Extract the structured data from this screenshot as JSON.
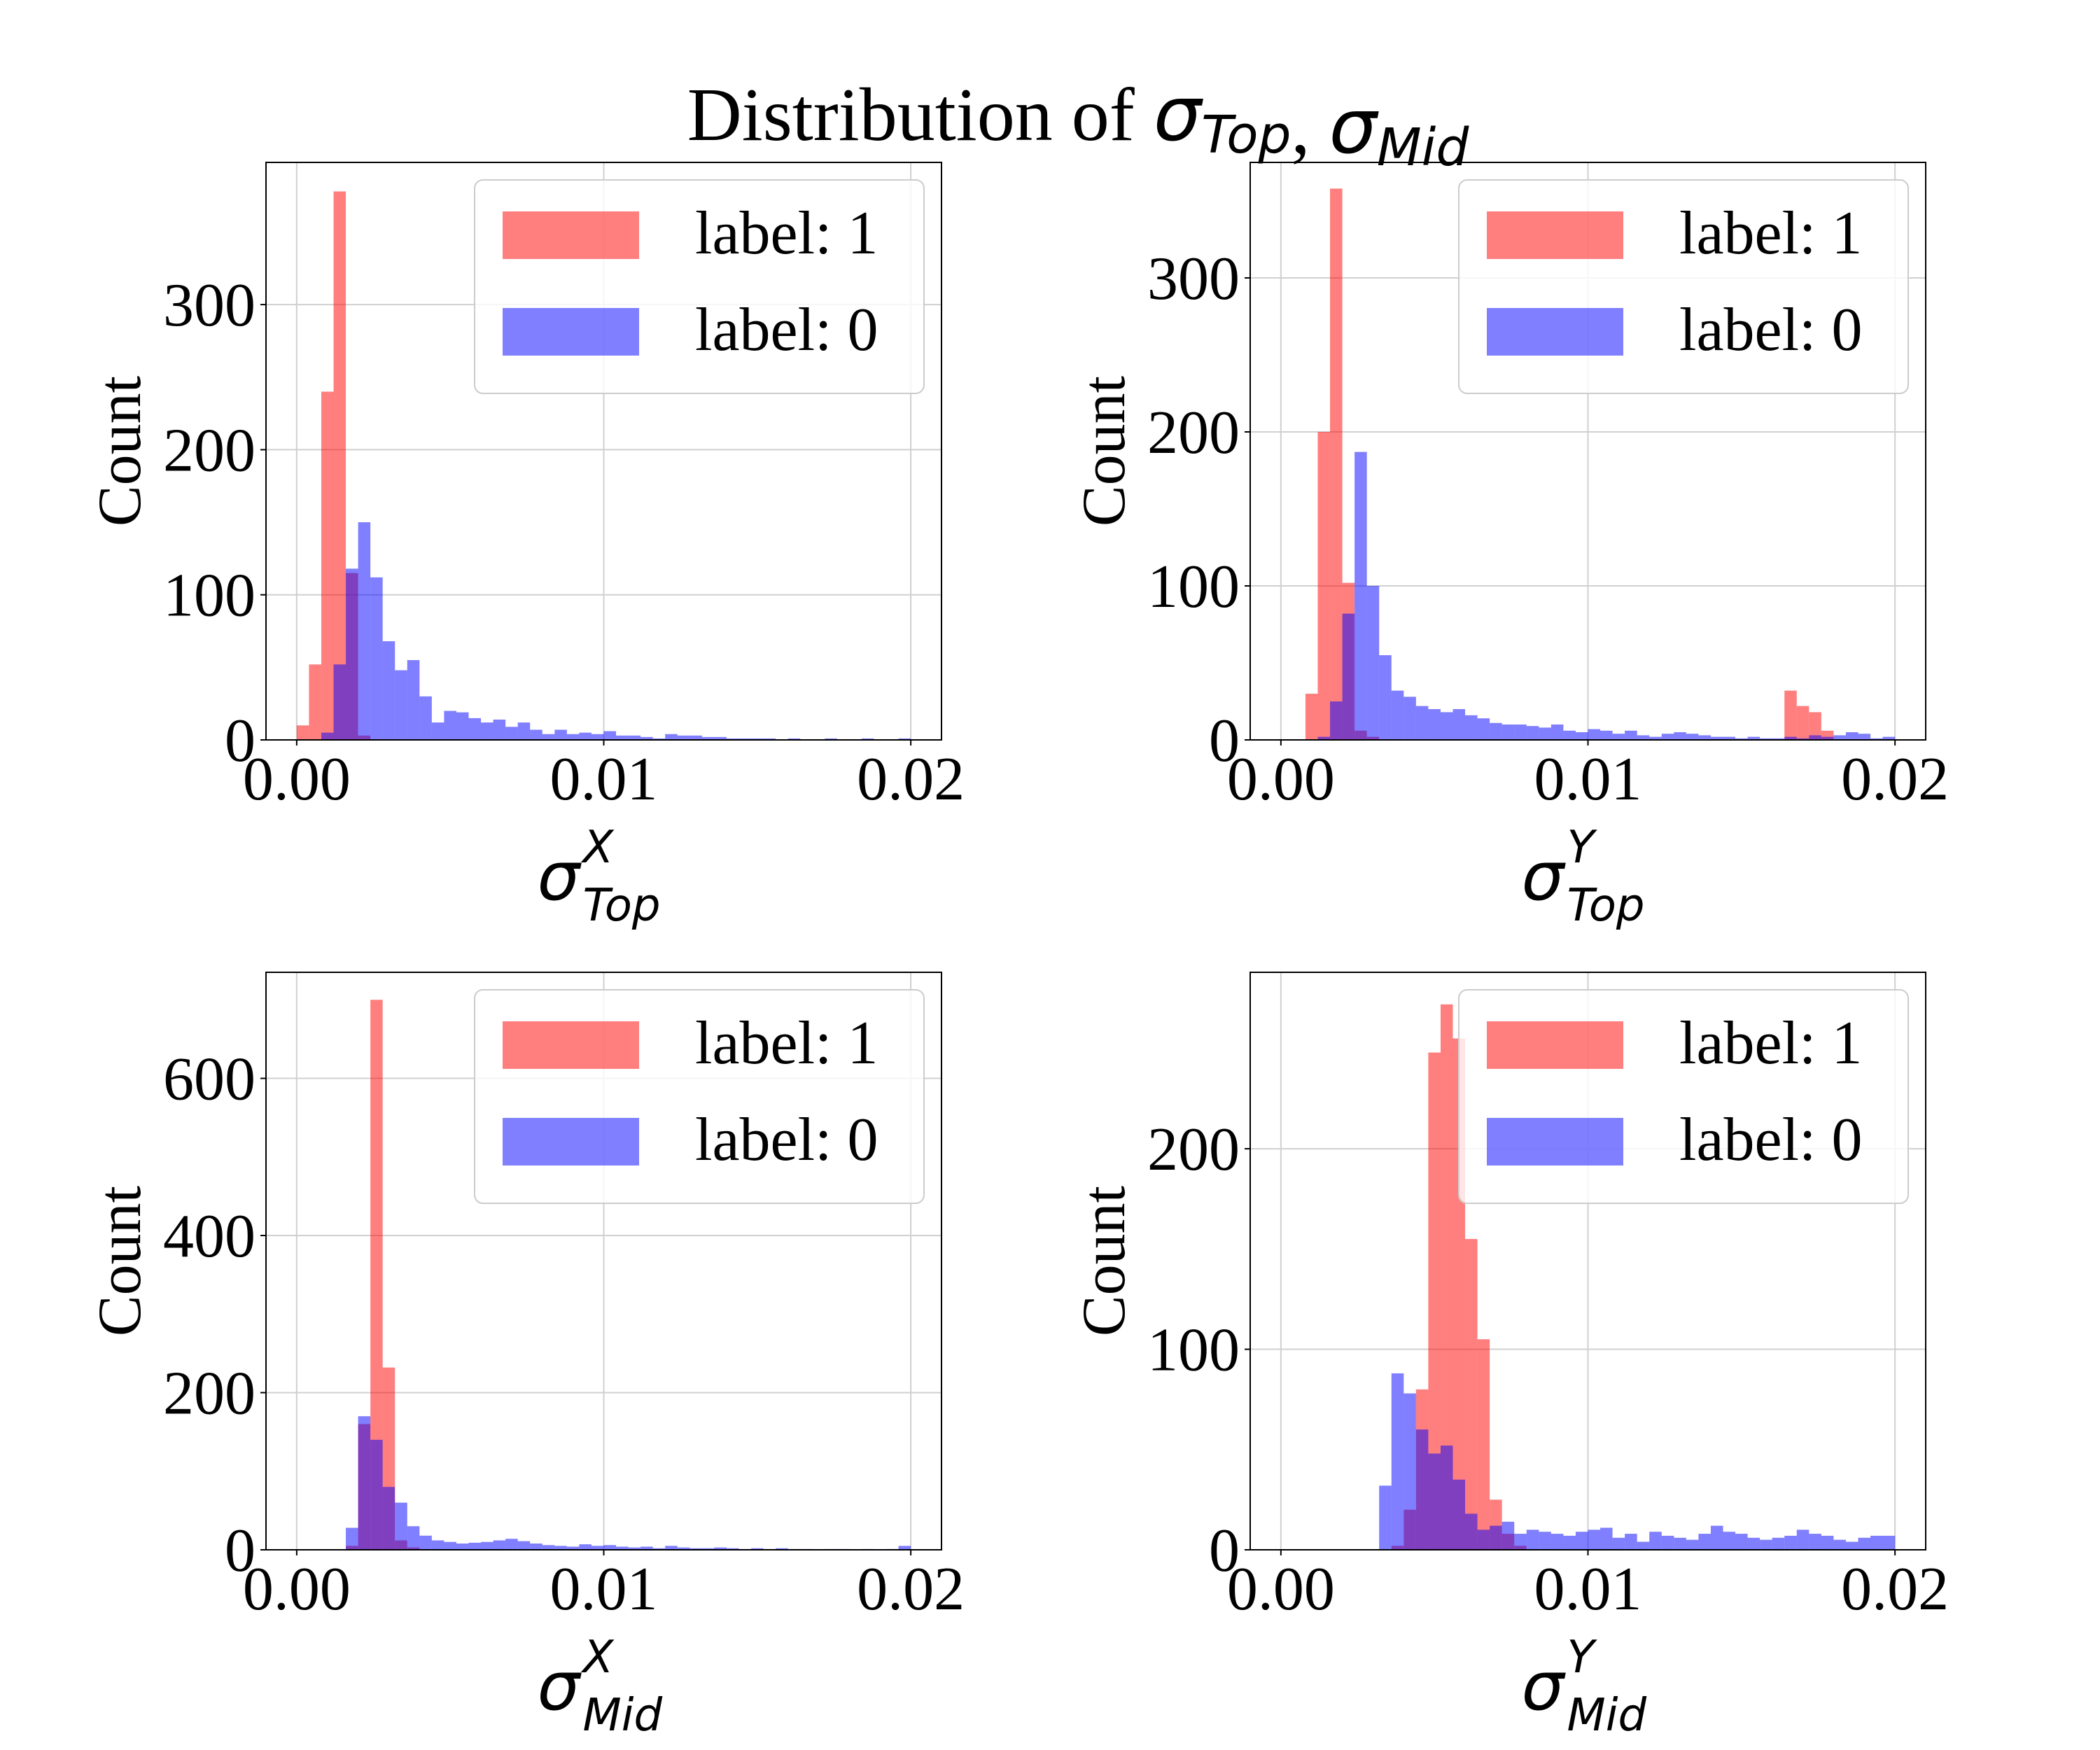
{
  "figure": {
    "title": "Distribution of ",
    "title_symbols": [
      {
        "base": "σ",
        "sub": "Top"
      },
      {
        "base": "σ",
        "sub": "Mid"
      }
    ],
    "title_separator": ", "
  },
  "colors": {
    "label_1": "#ff0000",
    "label_0": "#0000ff",
    "bar_opacity": 0.5,
    "grid": "#d0d0d0",
    "axes": "#000000"
  },
  "chart_data": [
    {
      "type": "bar",
      "title": "",
      "xlabel": {
        "base": "σ",
        "sup": "X",
        "sub": "Top"
      },
      "ylabel": "Count",
      "xlim": [
        -0.001,
        0.021
      ],
      "ylim": [
        0,
        398
      ],
      "xticks": [
        0.0,
        0.01,
        0.02
      ],
      "xtick_labels": [
        "0.00",
        "0.01",
        "0.02"
      ],
      "yticks": [
        0,
        100,
        200,
        300
      ],
      "ytick_labels": [
        "0",
        "100",
        "200",
        "300"
      ],
      "grid": true,
      "legend_position": "top-right",
      "bin_width": 0.0004,
      "series": [
        {
          "name": "label: 1",
          "color": "red",
          "x": [
            0.0,
            0.0004,
            0.0008,
            0.0012,
            0.0016,
            0.002
          ],
          "values": [
            10,
            52,
            240,
            378,
            115,
            3
          ]
        },
        {
          "name": "label: 0",
          "color": "blue",
          "x": [
            0.0008,
            0.0012,
            0.0016,
            0.002,
            0.0024,
            0.0028,
            0.0032,
            0.0036,
            0.004,
            0.0044,
            0.0048,
            0.0052,
            0.0056,
            0.006,
            0.0064,
            0.0068,
            0.0072,
            0.0076,
            0.008,
            0.0084,
            0.0088,
            0.0092,
            0.0096,
            0.01,
            0.0104,
            0.0108,
            0.0112,
            0.0116,
            0.012,
            0.0124,
            0.0128,
            0.0132,
            0.0136,
            0.014,
            0.0144,
            0.0148,
            0.0152,
            0.0156,
            0.016,
            0.0164,
            0.0168,
            0.0172,
            0.0176,
            0.018,
            0.0184,
            0.0188,
            0.0192,
            0.0196
          ],
          "values": [
            5,
            52,
            118,
            150,
            112,
            68,
            48,
            55,
            30,
            12,
            20,
            19,
            15,
            12,
            14,
            9,
            12,
            7,
            4,
            7,
            4,
            5,
            4,
            6,
            3,
            3,
            2,
            1,
            4,
            3,
            3,
            2,
            2,
            1,
            1,
            1,
            1,
            0,
            1,
            0,
            0,
            1,
            0,
            0,
            1,
            0,
            0,
            1
          ]
        }
      ]
    },
    {
      "type": "bar",
      "title": "",
      "xlabel": {
        "base": "σ",
        "sup": "Y",
        "sub": "Top"
      },
      "ylabel": "Count",
      "xlim": [
        -0.001,
        0.021
      ],
      "ylim": [
        0,
        375
      ],
      "xticks": [
        0.0,
        0.01,
        0.02
      ],
      "xtick_labels": [
        "0.00",
        "0.01",
        "0.02"
      ],
      "yticks": [
        0,
        100,
        200,
        300
      ],
      "ytick_labels": [
        "0",
        "100",
        "200",
        "300"
      ],
      "grid": true,
      "legend_position": "top-right",
      "bin_width": 0.0004,
      "series": [
        {
          "name": "label: 1",
          "color": "red",
          "x": [
            0.0008,
            0.0012,
            0.0016,
            0.002,
            0.0024,
            0.0028,
            0.0164,
            0.0168,
            0.0172,
            0.0176
          ],
          "values": [
            30,
            200,
            358,
            102,
            6,
            2,
            32,
            22,
            18,
            6
          ]
        },
        {
          "name": "label: 0",
          "color": "blue",
          "x": [
            0.0012,
            0.0016,
            0.002,
            0.0024,
            0.0028,
            0.0032,
            0.0036,
            0.004,
            0.0044,
            0.0048,
            0.0052,
            0.0056,
            0.006,
            0.0064,
            0.0068,
            0.0072,
            0.0076,
            0.008,
            0.0084,
            0.0088,
            0.0092,
            0.0096,
            0.01,
            0.0104,
            0.0108,
            0.0112,
            0.0116,
            0.012,
            0.0124,
            0.0128,
            0.0132,
            0.0136,
            0.014,
            0.0144,
            0.0148,
            0.0152,
            0.0156,
            0.016,
            0.0164,
            0.0168,
            0.0172,
            0.0176,
            0.018,
            0.0184,
            0.0188,
            0.0192,
            0.0196
          ],
          "values": [
            2,
            25,
            82,
            187,
            100,
            55,
            32,
            28,
            22,
            20,
            18,
            20,
            16,
            14,
            11,
            10,
            10,
            9,
            8,
            10,
            6,
            5,
            7,
            6,
            4,
            6,
            3,
            2,
            4,
            5,
            4,
            3,
            2,
            2,
            1,
            2,
            1,
            1,
            2,
            1,
            3,
            2,
            3,
            5,
            4,
            1,
            2
          ]
        }
      ]
    },
    {
      "type": "bar",
      "title": "",
      "xlabel": {
        "base": "σ",
        "sup": "X",
        "sub": "Mid"
      },
      "ylabel": "Count",
      "xlim": [
        -0.001,
        0.021
      ],
      "ylim": [
        0,
        735
      ],
      "xticks": [
        0.0,
        0.01,
        0.02
      ],
      "xtick_labels": [
        "0.00",
        "0.01",
        "0.02"
      ],
      "yticks": [
        0,
        200,
        400,
        600
      ],
      "ytick_labels": [
        "0",
        "200",
        "400",
        "600"
      ],
      "grid": true,
      "legend_position": "top-right",
      "bin_width": 0.0004,
      "series": [
        {
          "name": "label: 1",
          "color": "red",
          "x": [
            0.0016,
            0.002,
            0.0024,
            0.0028,
            0.0032,
            0.0036
          ],
          "values": [
            5,
            160,
            700,
            232,
            12,
            3
          ]
        },
        {
          "name": "label: 0",
          "color": "blue",
          "x": [
            0.0016,
            0.002,
            0.0024,
            0.0028,
            0.0032,
            0.0036,
            0.004,
            0.0044,
            0.0048,
            0.0052,
            0.0056,
            0.006,
            0.0064,
            0.0068,
            0.0072,
            0.0076,
            0.008,
            0.0084,
            0.0088,
            0.0092,
            0.0096,
            0.01,
            0.0104,
            0.0108,
            0.0112,
            0.0116,
            0.012,
            0.0124,
            0.0128,
            0.0132,
            0.0136,
            0.014,
            0.0144,
            0.0148,
            0.0152,
            0.0156,
            0.016,
            0.0164,
            0.0168,
            0.0172,
            0.0176,
            0.018,
            0.0184,
            0.0188,
            0.0192,
            0.0196
          ],
          "values": [
            28,
            170,
            140,
            80,
            60,
            30,
            18,
            12,
            10,
            8,
            9,
            10,
            12,
            14,
            11,
            8,
            6,
            5,
            4,
            7,
            5,
            6,
            4,
            3,
            4,
            2,
            5,
            3,
            2,
            2,
            3,
            2,
            1,
            2,
            1,
            2,
            1,
            1,
            0,
            1,
            1,
            0,
            1,
            0,
            1,
            5
          ]
        }
      ]
    },
    {
      "type": "bar",
      "title": "",
      "xlabel": {
        "base": "σ",
        "sup": "Y",
        "sub": "Mid"
      },
      "ylabel": "Count",
      "xlim": [
        -0.001,
        0.021
      ],
      "ylim": [
        0,
        288
      ],
      "xticks": [
        0.0,
        0.01,
        0.02
      ],
      "xtick_labels": [
        "0.00",
        "0.01",
        "0.02"
      ],
      "yticks": [
        0,
        100,
        200
      ],
      "ytick_labels": [
        "0",
        "100",
        "200"
      ],
      "grid": true,
      "legend_position": "top-right",
      "bin_width": 0.0004,
      "series": [
        {
          "name": "label: 1",
          "color": "red",
          "x": [
            0.0036,
            0.004,
            0.0044,
            0.0048,
            0.0052,
            0.0056,
            0.006,
            0.0064,
            0.0068,
            0.0072,
            0.0076
          ],
          "values": [
            2,
            20,
            80,
            248,
            272,
            255,
            155,
            105,
            25,
            8,
            2
          ]
        },
        {
          "name": "label: 0",
          "color": "blue",
          "x": [
            0.0032,
            0.0036,
            0.004,
            0.0044,
            0.0048,
            0.0052,
            0.0056,
            0.006,
            0.0064,
            0.0068,
            0.0072,
            0.0076,
            0.008,
            0.0084,
            0.0088,
            0.0092,
            0.0096,
            0.01,
            0.0104,
            0.0108,
            0.0112,
            0.0116,
            0.012,
            0.0124,
            0.0128,
            0.0132,
            0.0136,
            0.014,
            0.0144,
            0.0148,
            0.0152,
            0.0156,
            0.016,
            0.0164,
            0.0168,
            0.0172,
            0.0176,
            0.018,
            0.0184,
            0.0188,
            0.0192,
            0.0196
          ],
          "values": [
            32,
            88,
            78,
            60,
            48,
            52,
            35,
            18,
            10,
            12,
            14,
            8,
            10,
            9,
            8,
            7,
            9,
            10,
            11,
            6,
            8,
            4,
            9,
            7,
            6,
            5,
            8,
            12,
            9,
            8,
            6,
            5,
            6,
            7,
            10,
            8,
            7,
            5,
            4,
            6,
            7,
            7
          ]
        }
      ]
    }
  ]
}
